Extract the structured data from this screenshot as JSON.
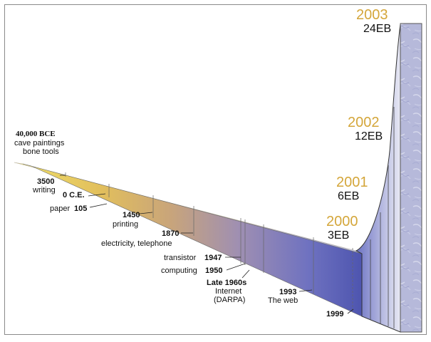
{
  "milestones": {
    "bce40000": {
      "year": "40,000 BCE",
      "line1": "cave paintings",
      "line2": "bone tools"
    },
    "writing": {
      "year": "3500",
      "desc": "writing"
    },
    "ce0": {
      "year": "0 C.E."
    },
    "paper": {
      "desc": "paper",
      "year": "105"
    },
    "printing": {
      "year": "1450",
      "desc": "printing"
    },
    "electricity": {
      "year": "1870",
      "desc": "electricity, telephone"
    },
    "transistor": {
      "desc": "transistor",
      "year": "1947"
    },
    "computing": {
      "desc": "computing",
      "year": "1950"
    },
    "internet": {
      "year": "Late 1960s",
      "line1": "Internet",
      "line2": "(DARPA)"
    },
    "web": {
      "year": "1993",
      "desc": "The web"
    },
    "y1999": {
      "year": "1999"
    }
  },
  "data_points": [
    {
      "year": "2000",
      "size": "3EB"
    },
    {
      "year": "2001",
      "size": "6EB"
    },
    {
      "year": "2002",
      "size": "12EB"
    },
    {
      "year": "2003",
      "size": "24EB"
    }
  ],
  "colors": {
    "year_gold": "#d4a63a",
    "band_start": "#f2e26a",
    "band_mid": "#d1a56a",
    "band_end": "#5b62b8",
    "wall": "#aeb2d6"
  }
}
